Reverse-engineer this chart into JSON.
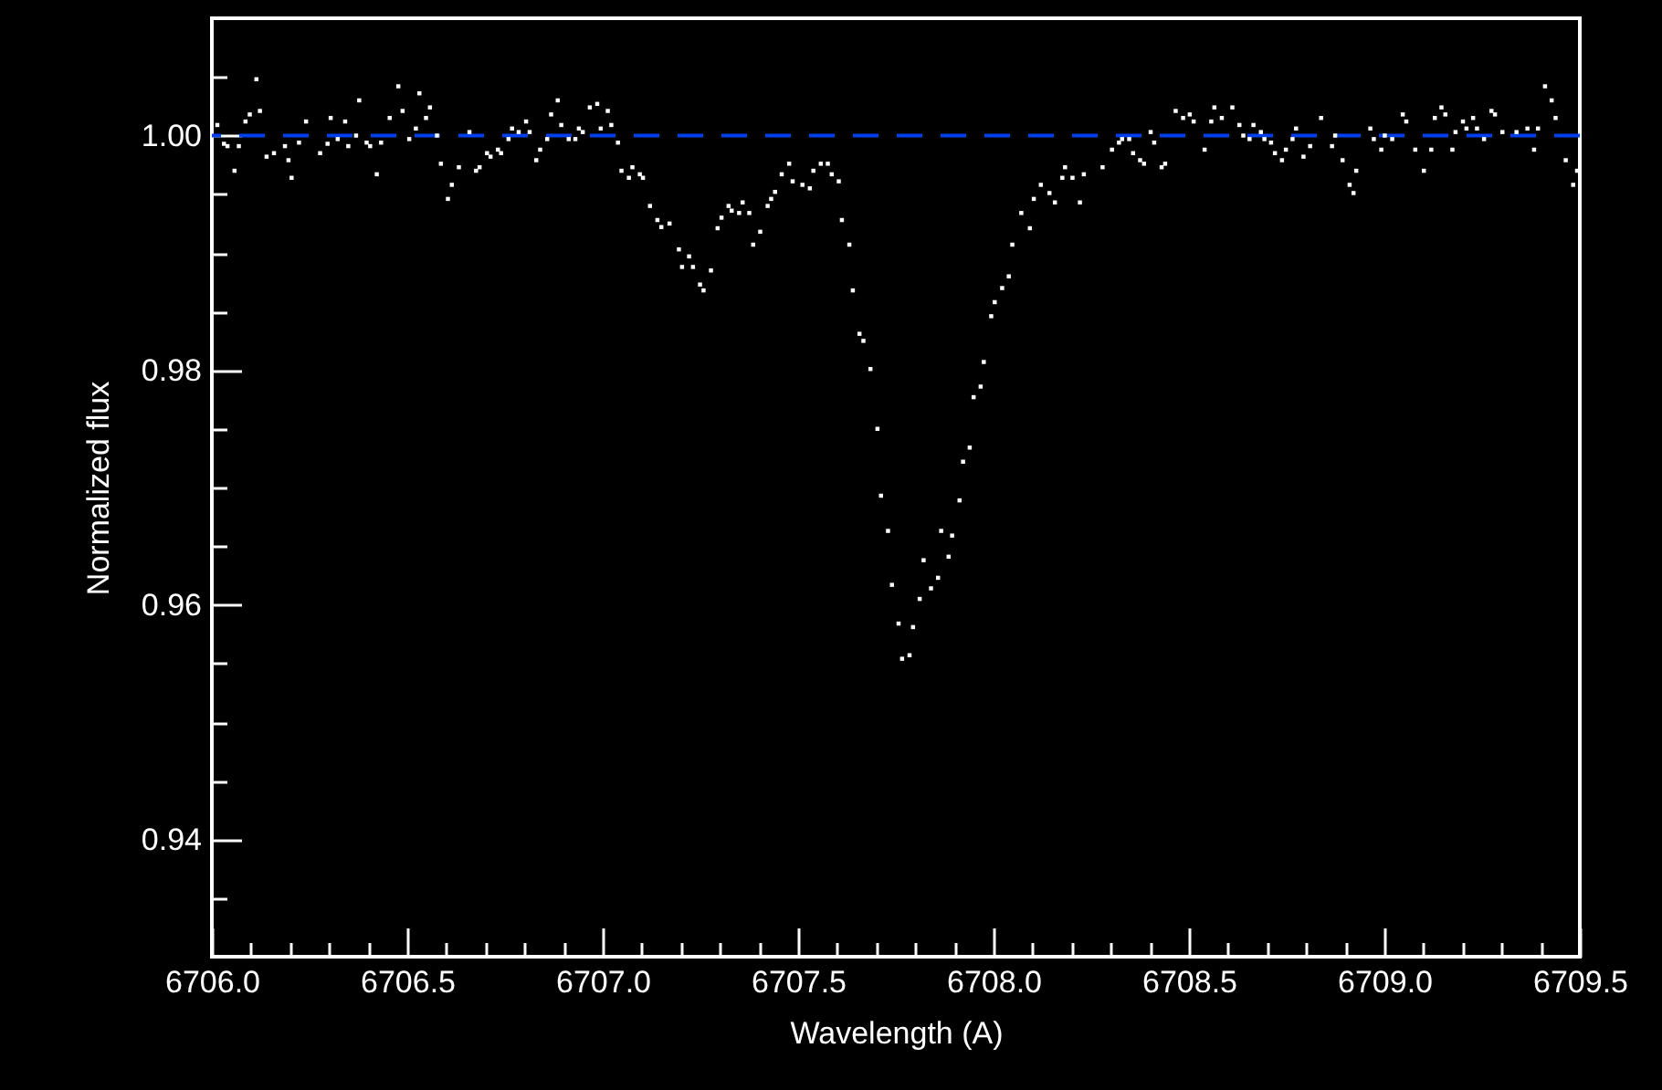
{
  "chart_data": {
    "type": "scatter",
    "xlabel": "Wavelength (A)",
    "ylabel": "Normalized flux",
    "x": [
      6706.014,
      6706.031,
      6706.04,
      6706.058,
      6706.069,
      6706.086,
      6706.097,
      6706.114,
      6706.123,
      6706.14,
      6706.159,
      6706.187,
      6706.196,
      6706.204,
      6706.223,
      6706.241,
      6706.277,
      6706.296,
      6706.304,
      6706.322,
      6706.341,
      6706.349,
      6706.369,
      6706.377,
      6706.396,
      6706.405,
      6706.422,
      6706.433,
      6706.455,
      6706.477,
      6706.488,
      6706.505,
      6706.522,
      6706.531,
      6706.548,
      6706.558,
      6706.576,
      6706.586,
      6706.604,
      6706.614,
      6706.632,
      6706.659,
      6706.676,
      6706.685,
      6706.704,
      6706.713,
      6706.732,
      6706.74,
      6706.759,
      6706.768,
      6706.785,
      6706.804,
      6706.813,
      6706.83,
      6706.84,
      6706.858,
      6706.868,
      6706.885,
      6706.894,
      6706.913,
      6706.93,
      6706.939,
      6706.949,
      6706.967,
      6706.986,
      6706.995,
      6707.013,
      6707.022,
      6707.039,
      6707.048,
      6707.067,
      6707.076,
      6707.095,
      6707.103,
      6707.121,
      6707.14,
      6707.15,
      6707.171,
      6707.195,
      6707.203,
      6707.221,
      6707.231,
      6707.249,
      6707.258,
      6707.277,
      6707.294,
      6707.304,
      6707.322,
      6707.33,
      6707.349,
      6707.358,
      6707.375,
      6707.385,
      6707.403,
      6707.422,
      6707.431,
      6707.441,
      6707.458,
      6707.477,
      6707.486,
      6707.511,
      6707.53,
      6707.539,
      6707.558,
      6707.576,
      6707.586,
      6707.604,
      6707.612,
      6707.631,
      6707.64,
      6707.657,
      6707.667,
      6707.685,
      6707.703,
      6707.712,
      6707.73,
      6707.74,
      6707.757,
      6707.766,
      6707.785,
      6707.794,
      6707.811,
      6707.821,
      6707.84,
      6707.858,
      6707.866,
      6707.885,
      6707.894,
      6707.913,
      6707.922,
      6707.939,
      6707.949,
      6707.967,
      6707.975,
      6707.994,
      6708.003,
      6708.022,
      6708.039,
      6708.048,
      6708.071,
      6708.093,
      6708.103,
      6708.121,
      6708.143,
      6708.157,
      6708.176,
      6708.183,
      6708.202,
      6708.221,
      6708.231,
      6708.279,
      6708.303,
      6708.321,
      6708.329,
      6708.347,
      6708.357,
      6708.375,
      6708.385,
      6708.402,
      6708.411,
      6708.43,
      6708.439,
      6708.466,
      6708.485,
      6708.502,
      6708.512,
      6708.54,
      6708.557,
      6708.565,
      6708.584,
      6708.611,
      6708.629,
      6708.639,
      6708.655,
      6708.665,
      6708.684,
      6708.693,
      6708.71,
      6708.72,
      6708.738,
      6708.748,
      6708.765,
      6708.774,
      6708.793,
      6708.81,
      6708.838,
      6708.866,
      6708.874,
      6708.893,
      6708.911,
      6708.921,
      6708.928,
      6708.964,
      6708.973,
      6708.992,
      6709.001,
      6709.02,
      6709.047,
      6709.056,
      6709.079,
      6709.101,
      6709.12,
      6709.129,
      6709.146,
      6709.156,
      6709.174,
      6709.182,
      6709.201,
      6709.21,
      6709.227,
      6709.237,
      6709.255,
      6709.274,
      6709.283,
      6709.302,
      6709.338,
      6709.366,
      6709.383,
      6709.393,
      6709.411,
      6709.428,
      6709.438,
      6709.464,
      6709.483,
      6709.493
    ],
    "series": [
      {
        "color": "#ffffff",
        "values": [
          1.0009,
          0.9993,
          0.9991,
          0.997,
          0.9991,
          1.0012,
          1.0018,
          1.0048,
          1.0021,
          0.9982,
          0.9985,
          0.9991,
          0.9979,
          0.9964,
          0.9994,
          1.0012,
          0.9985,
          0.9993,
          1.0015,
          0.9997,
          1.0012,
          0.9991,
          1.0,
          1.003,
          0.9994,
          0.9991,
          0.9967,
          0.9994,
          1.0015,
          1.0042,
          1.0021,
          0.9997,
          1.0006,
          1.0036,
          1.0015,
          1.0024,
          1.0,
          0.9976,
          0.9946,
          0.9958,
          0.9973,
          1.0003,
          0.997,
          0.9973,
          0.9985,
          0.9982,
          0.9988,
          0.9985,
          0.9997,
          1.0006,
          1.0003,
          1.0012,
          1.0003,
          0.9979,
          0.9988,
          0.9997,
          1.0018,
          1.003,
          1.0009,
          0.9997,
          0.9997,
          1.0006,
          1.0003,
          1.0024,
          1.0027,
          1.0006,
          1.0021,
          1.0009,
          0.9994,
          0.997,
          0.9964,
          0.9973,
          0.9967,
          0.9964,
          0.994,
          0.9928,
          0.9922,
          0.9925,
          0.9903,
          0.9888,
          0.9897,
          0.9888,
          0.9873,
          0.9868,
          0.9885,
          0.9921,
          0.993,
          0.994,
          0.9936,
          0.9934,
          0.9943,
          0.9934,
          0.9907,
          0.9918,
          0.994,
          0.9946,
          0.9952,
          0.9967,
          0.9976,
          0.9961,
          0.9958,
          0.9955,
          0.997,
          0.9976,
          0.9976,
          0.9967,
          0.9961,
          0.9928,
          0.9907,
          0.9868,
          0.9831,
          0.9825,
          0.9801,
          0.975,
          0.9693,
          0.9663,
          0.9617,
          0.9584,
          0.9554,
          0.9557,
          0.9581,
          0.9605,
          0.9638,
          0.9614,
          0.9623,
          0.9663,
          0.9641,
          0.9659,
          0.9689,
          0.9722,
          0.9734,
          0.9777,
          0.9786,
          0.9807,
          0.9846,
          0.9858,
          0.987,
          0.988,
          0.9907,
          0.9934,
          0.9921,
          0.9946,
          0.9958,
          0.9951,
          0.9943,
          0.9964,
          0.9973,
          0.9964,
          0.9943,
          0.9967,
          0.9973,
          0.9988,
          0.9994,
          0.9997,
          0.9997,
          0.9985,
          0.9979,
          0.9976,
          1.0003,
          0.9994,
          0.9973,
          0.9976,
          1.0021,
          1.0015,
          1.0018,
          1.0012,
          0.9988,
          1.0012,
          1.0024,
          1.0015,
          1.0024,
          1.0009,
          1.0,
          0.9997,
          1.0009,
          1.0003,
          0.9997,
          0.9994,
          0.9985,
          0.9979,
          0.9988,
          0.9997,
          1.0006,
          0.9982,
          0.9991,
          1.0015,
          0.9991,
          1.0,
          0.9979,
          0.9958,
          0.9951,
          0.997,
          1.0006,
          0.9997,
          0.9988,
          1.0,
          0.9997,
          1.0018,
          1.0012,
          0.9988,
          0.997,
          0.9988,
          1.0015,
          1.0024,
          1.0018,
          0.9988,
          1.0003,
          1.0012,
          1.0006,
          1.0015,
          1.0006,
          0.9997,
          1.0021,
          1.0018,
          1.0003,
          1.0003,
          1.0006,
          0.9988,
          1.0006,
          1.0042,
          1.003,
          1.0015,
          0.9979,
          0.9958,
          0.997
        ]
      }
    ],
    "marker": "square",
    "xlim": [
      6706,
      6709.5
    ],
    "xticks": [
      {
        "value": 6706,
        "label": "6706.0"
      },
      {
        "value": 6706.1,
        "label": null
      },
      {
        "value": 6706.2,
        "label": null
      },
      {
        "value": 6706.3,
        "label": null
      },
      {
        "value": 6706.4,
        "label": null
      },
      {
        "value": 6706.5,
        "label": "6706.5"
      },
      {
        "value": 6706.6,
        "label": null
      },
      {
        "value": 6706.7,
        "label": null
      },
      {
        "value": 6706.8,
        "label": null
      },
      {
        "value": 6706.9,
        "label": null
      },
      {
        "value": 6707,
        "label": "6707.0"
      },
      {
        "value": 6707.1,
        "label": null
      },
      {
        "value": 6707.2,
        "label": null
      },
      {
        "value": 6707.3,
        "label": null
      },
      {
        "value": 6707.4,
        "label": null
      },
      {
        "value": 6707.5,
        "label": "6707.5"
      },
      {
        "value": 6707.6,
        "label": null
      },
      {
        "value": 6707.7,
        "label": null
      },
      {
        "value": 6707.8,
        "label": null
      },
      {
        "value": 6707.9,
        "label": null
      },
      {
        "value": 6708,
        "label": "6708.0"
      },
      {
        "value": 6708.1,
        "label": null
      },
      {
        "value": 6708.2,
        "label": null
      },
      {
        "value": 6708.3,
        "label": null
      },
      {
        "value": 6708.4,
        "label": null
      },
      {
        "value": 6708.5,
        "label": "6708.5"
      },
      {
        "value": 6708.6,
        "label": null
      },
      {
        "value": 6708.7,
        "label": null
      },
      {
        "value": 6708.8,
        "label": null
      },
      {
        "value": 6708.9,
        "label": null
      },
      {
        "value": 6709,
        "label": "6709.0"
      },
      {
        "value": 6709.1,
        "label": null
      },
      {
        "value": 6709.2,
        "label": null
      },
      {
        "value": 6709.3,
        "label": null
      },
      {
        "value": 6709.4,
        "label": null
      },
      {
        "value": 6709.5,
        "label": "6709.5"
      }
    ],
    "ylim": [
      0.93,
      1.01
    ],
    "yticks": [
      {
        "value": 0.935,
        "label": null
      },
      0.94,
      {
        "value": 0.945,
        "label": null
      },
      {
        "value": 0.95,
        "label": null
      },
      {
        "value": 0.955,
        "label": null
      },
      0.96,
      {
        "value": 0.965,
        "label": null
      },
      {
        "value": 0.97,
        "label": null
      },
      {
        "value": 0.975,
        "label": null
      },
      0.98,
      {
        "value": 0.985,
        "label": null
      },
      {
        "value": 0.99,
        "label": null
      },
      {
        "value": 0.995,
        "label": null
      },
      {
        "value": 1,
        "label": "1.00"
      },
      {
        "value": 1.005,
        "label": null
      }
    ],
    "ref_lines": [
      {
        "axis": "y",
        "value": 1,
        "color": "#0040f0",
        "line_style": "dashed"
      }
    ]
  }
}
